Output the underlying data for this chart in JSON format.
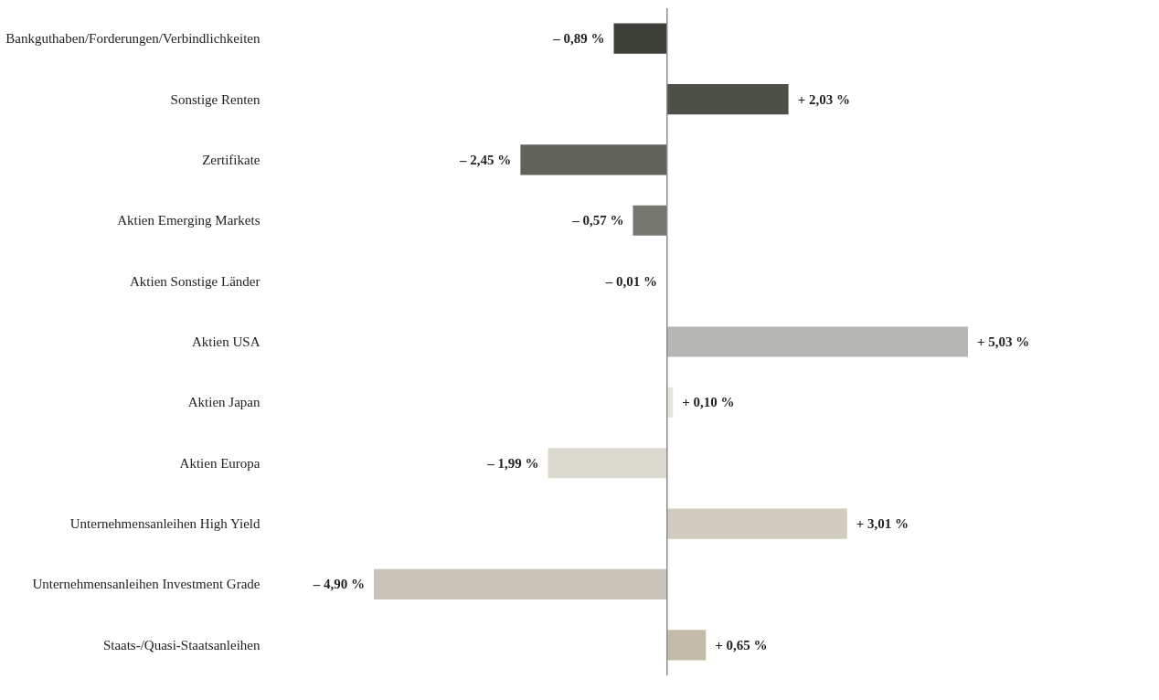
{
  "chart_data": {
    "type": "bar",
    "orientation": "horizontal",
    "categories": [
      "Bankguthaben/Forderungen/Verbindlichkeiten",
      "Sonstige Renten",
      "Zertifikate",
      "Aktien Emerging Markets",
      "Aktien Sonstige Länder",
      "Aktien USA",
      "Aktien Japan",
      "Aktien Europa",
      "Unternehmensanleihen High Yield",
      "Unternehmensanleihen Investment Grade",
      "Staats-/Quasi-Staatsanleihen"
    ],
    "values": [
      -0.89,
      2.03,
      -2.45,
      -0.57,
      -0.01,
      5.03,
      0.1,
      -1.99,
      3.01,
      -4.9,
      0.65
    ],
    "colors": [
      "#3d4039",
      "#4d5048",
      "#60625b",
      "#76776f",
      "#8a8a86",
      "#b6b6b4",
      "#e7e5de",
      "#dcd9cf",
      "#d2cbbf",
      "#c9c2b6",
      "#c4baa8"
    ],
    "value_labels": [
      "– 0,89 %",
      "+ 2,03 %",
      "– 2,45 %",
      "– 0,57 %",
      "– 0,01 %",
      "+ 5,03 %",
      "+ 0,10 %",
      "– 1,99 %",
      "+ 3,01 %",
      "– 4,90 %",
      "+ 0,65 %"
    ],
    "ref_lines": [
      {
        "axis": "x",
        "value": 0,
        "color": "#8c8c8c"
      }
    ],
    "grid": false,
    "tick_labels": "y"
  }
}
